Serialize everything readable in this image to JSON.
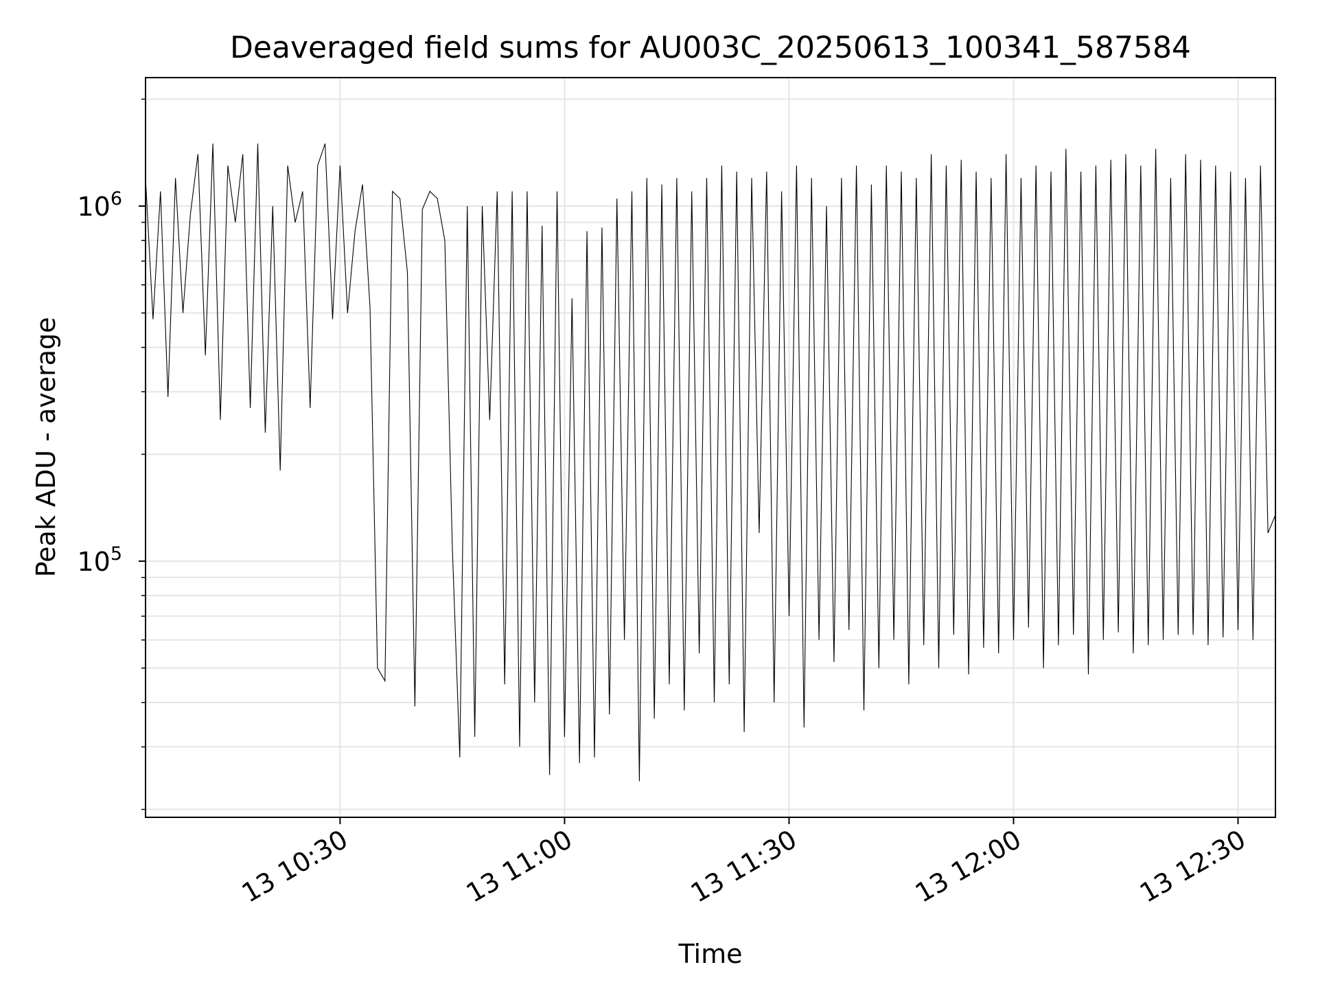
{
  "chart_data": {
    "type": "line",
    "title": "Deaveraged field sums for AU003C_20250613_100341_587584",
    "xlabel": "Time",
    "ylabel": "Peak ADU - average",
    "yscale": "log",
    "ylim": [
      19000,
      2300000
    ],
    "xlim": [
      "2025-06-13 10:04:00",
      "2025-06-13 12:35:00"
    ],
    "grid": true,
    "line_color": "#000000",
    "grid_color": "#e5e5e5",
    "x_ticks": [
      {
        "value": "2025-06-13 10:30:00",
        "label": "13 10:30"
      },
      {
        "value": "2025-06-13 11:00:00",
        "label": "13 11:00"
      },
      {
        "value": "2025-06-13 11:30:00",
        "label": "13 11:30"
      },
      {
        "value": "2025-06-13 12:00:00",
        "label": "13 12:00"
      },
      {
        "value": "2025-06-13 12:30:00",
        "label": "13 12:30"
      }
    ],
    "y_major_ticks": [
      {
        "value": 100000,
        "base": "10",
        "exp": "5"
      },
      {
        "value": 1000000,
        "base": "10",
        "exp": "6"
      }
    ],
    "y_minor_ticks": [
      20000,
      30000,
      40000,
      50000,
      60000,
      70000,
      80000,
      90000,
      200000,
      300000,
      400000,
      500000,
      600000,
      700000,
      800000,
      900000,
      2000000
    ],
    "series": [
      {
        "x": [
          "2025-06-13 10:04:00",
          "2025-06-13 10:05:00",
          "2025-06-13 10:06:00",
          "2025-06-13 10:07:00",
          "2025-06-13 10:08:00",
          "2025-06-13 10:09:00",
          "2025-06-13 10:10:00",
          "2025-06-13 10:11:00",
          "2025-06-13 10:12:00",
          "2025-06-13 10:13:00",
          "2025-06-13 10:14:00",
          "2025-06-13 10:15:00",
          "2025-06-13 10:16:00",
          "2025-06-13 10:17:00",
          "2025-06-13 10:18:00",
          "2025-06-13 10:19:00",
          "2025-06-13 10:20:00",
          "2025-06-13 10:21:00",
          "2025-06-13 10:22:00",
          "2025-06-13 10:23:00",
          "2025-06-13 10:24:00",
          "2025-06-13 10:25:00",
          "2025-06-13 10:26:00",
          "2025-06-13 10:27:00",
          "2025-06-13 10:28:00",
          "2025-06-13 10:29:00",
          "2025-06-13 10:30:00",
          "2025-06-13 10:31:00",
          "2025-06-13 10:32:00",
          "2025-06-13 10:33:00",
          "2025-06-13 10:34:00",
          "2025-06-13 10:35:00",
          "2025-06-13 10:36:00",
          "2025-06-13 10:37:00",
          "2025-06-13 10:38:00",
          "2025-06-13 10:39:00",
          "2025-06-13 10:40:00",
          "2025-06-13 10:41:00",
          "2025-06-13 10:42:00",
          "2025-06-13 10:43:00",
          "2025-06-13 10:44:00",
          "2025-06-13 10:45:00",
          "2025-06-13 10:46:00",
          "2025-06-13 10:47:00",
          "2025-06-13 10:48:00",
          "2025-06-13 10:49:00",
          "2025-06-13 10:50:00",
          "2025-06-13 10:51:00",
          "2025-06-13 10:52:00",
          "2025-06-13 10:53:00",
          "2025-06-13 10:54:00",
          "2025-06-13 10:55:00",
          "2025-06-13 10:56:00",
          "2025-06-13 10:57:00",
          "2025-06-13 10:58:00",
          "2025-06-13 10:59:00",
          "2025-06-13 11:00:00",
          "2025-06-13 11:01:00",
          "2025-06-13 11:02:00",
          "2025-06-13 11:03:00",
          "2025-06-13 11:04:00",
          "2025-06-13 11:05:00",
          "2025-06-13 11:06:00",
          "2025-06-13 11:07:00",
          "2025-06-13 11:08:00",
          "2025-06-13 11:09:00",
          "2025-06-13 11:10:00",
          "2025-06-13 11:11:00",
          "2025-06-13 11:12:00",
          "2025-06-13 11:13:00",
          "2025-06-13 11:14:00",
          "2025-06-13 11:15:00",
          "2025-06-13 11:16:00",
          "2025-06-13 11:17:00",
          "2025-06-13 11:18:00",
          "2025-06-13 11:19:00",
          "2025-06-13 11:20:00",
          "2025-06-13 11:21:00",
          "2025-06-13 11:22:00",
          "2025-06-13 11:23:00",
          "2025-06-13 11:24:00",
          "2025-06-13 11:25:00",
          "2025-06-13 11:26:00",
          "2025-06-13 11:27:00",
          "2025-06-13 11:28:00",
          "2025-06-13 11:29:00",
          "2025-06-13 11:30:00",
          "2025-06-13 11:31:00",
          "2025-06-13 11:32:00",
          "2025-06-13 11:33:00",
          "2025-06-13 11:34:00",
          "2025-06-13 11:35:00",
          "2025-06-13 11:36:00",
          "2025-06-13 11:37:00",
          "2025-06-13 11:38:00",
          "2025-06-13 11:39:00",
          "2025-06-13 11:40:00",
          "2025-06-13 11:41:00",
          "2025-06-13 11:42:00",
          "2025-06-13 11:43:00",
          "2025-06-13 11:44:00",
          "2025-06-13 11:45:00",
          "2025-06-13 11:46:00",
          "2025-06-13 11:47:00",
          "2025-06-13 11:48:00",
          "2025-06-13 11:49:00",
          "2025-06-13 11:50:00",
          "2025-06-13 11:51:00",
          "2025-06-13 11:52:00",
          "2025-06-13 11:53:00",
          "2025-06-13 11:54:00",
          "2025-06-13 11:55:00",
          "2025-06-13 11:56:00",
          "2025-06-13 11:57:00",
          "2025-06-13 11:58:00",
          "2025-06-13 11:59:00",
          "2025-06-13 12:00:00",
          "2025-06-13 12:01:00",
          "2025-06-13 12:02:00",
          "2025-06-13 12:03:00",
          "2025-06-13 12:04:00",
          "2025-06-13 12:05:00",
          "2025-06-13 12:06:00",
          "2025-06-13 12:07:00",
          "2025-06-13 12:08:00",
          "2025-06-13 12:09:00",
          "2025-06-13 12:10:00",
          "2025-06-13 12:11:00",
          "2025-06-13 12:12:00",
          "2025-06-13 12:13:00",
          "2025-06-13 12:14:00",
          "2025-06-13 12:15:00",
          "2025-06-13 12:16:00",
          "2025-06-13 12:17:00",
          "2025-06-13 12:18:00",
          "2025-06-13 12:19:00",
          "2025-06-13 12:20:00",
          "2025-06-13 12:21:00",
          "2025-06-13 12:22:00",
          "2025-06-13 12:23:00",
          "2025-06-13 12:24:00",
          "2025-06-13 12:25:00",
          "2025-06-13 12:26:00",
          "2025-06-13 12:27:00",
          "2025-06-13 12:28:00",
          "2025-06-13 12:29:00",
          "2025-06-13 12:30:00",
          "2025-06-13 12:31:00",
          "2025-06-13 12:32:00",
          "2025-06-13 12:33:00",
          "2025-06-13 12:34:00",
          "2025-06-13 12:35:00"
        ],
        "y": [
          1200000,
          480000,
          1100000,
          290000,
          1200000,
          500000,
          950000,
          1400000,
          380000,
          1500000,
          250000,
          1300000,
          900000,
          1400000,
          270000,
          1500000,
          230000,
          1000000,
          180000,
          1300000,
          900000,
          1100000,
          270000,
          1300000,
          1500000,
          480000,
          1300000,
          500000,
          850000,
          1150000,
          520000,
          50000,
          46000,
          1100000,
          1050000,
          650000,
          39000,
          980000,
          1100000,
          1050000,
          800000,
          110000,
          28000,
          1000000,
          32000,
          1000000,
          250000,
          1100000,
          45000,
          1100000,
          30000,
          1100000,
          40000,
          880000,
          25000,
          1100000,
          32000,
          550000,
          27000,
          850000,
          28000,
          870000,
          37000,
          1050000,
          60000,
          1100000,
          24000,
          1200000,
          36000,
          1150000,
          45000,
          1200000,
          38000,
          1100000,
          55000,
          1200000,
          40000,
          1300000,
          45000,
          1250000,
          33000,
          1200000,
          120000,
          1250000,
          40000,
          1100000,
          70000,
          1300000,
          34000,
          1200000,
          60000,
          1000000,
          52000,
          1200000,
          64000,
          1300000,
          38000,
          1150000,
          50000,
          1300000,
          60000,
          1250000,
          45000,
          1200000,
          58000,
          1400000,
          50000,
          1300000,
          62000,
          1350000,
          48000,
          1250000,
          57000,
          1200000,
          55000,
          1400000,
          60000,
          1200000,
          65000,
          1300000,
          50000,
          1250000,
          58000,
          1450000,
          62000,
          1250000,
          48000,
          1300000,
          60000,
          1350000,
          63000,
          1400000,
          55000,
          1300000,
          58000,
          1450000,
          60000,
          1200000,
          62000,
          1400000,
          62000,
          1350000,
          58000,
          1300000,
          61000,
          1250000,
          64000,
          1200000,
          60000,
          1300000,
          120000,
          135000
        ]
      }
    ]
  }
}
